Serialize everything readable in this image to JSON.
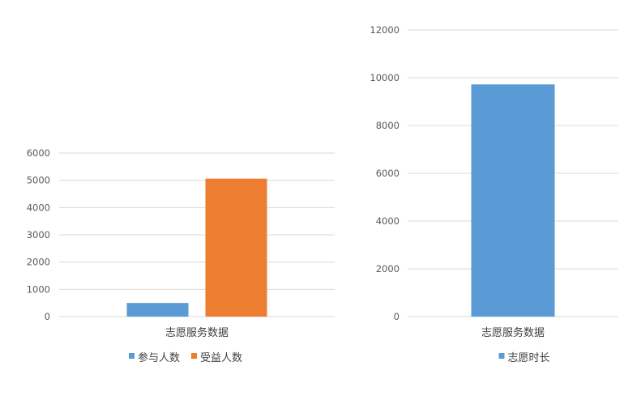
{
  "chart_data": [
    {
      "type": "bar",
      "categories": [
        "志愿服务数据"
      ],
      "series": [
        {
          "name": "参与人数",
          "values": [
            500
          ],
          "color": "#5b9bd5"
        },
        {
          "name": "受益人数",
          "values": [
            5060
          ],
          "color": "#ed7d31"
        }
      ],
      "ylim": [
        0,
        6000
      ],
      "yticks": [
        "0",
        "1000",
        "2000",
        "3000",
        "4000",
        "5000",
        "6000"
      ],
      "grid": true,
      "legend": "bottom"
    },
    {
      "type": "bar",
      "categories": [
        "志愿服务数据"
      ],
      "series": [
        {
          "name": "志愿时长",
          "values": [
            9720
          ],
          "color": "#5b9bd5"
        }
      ],
      "ylim": [
        0,
        12000
      ],
      "yticks": [
        "0",
        "2000",
        "4000",
        "6000",
        "8000",
        "10000",
        "12000"
      ],
      "grid": true,
      "legend": "bottom"
    }
  ]
}
